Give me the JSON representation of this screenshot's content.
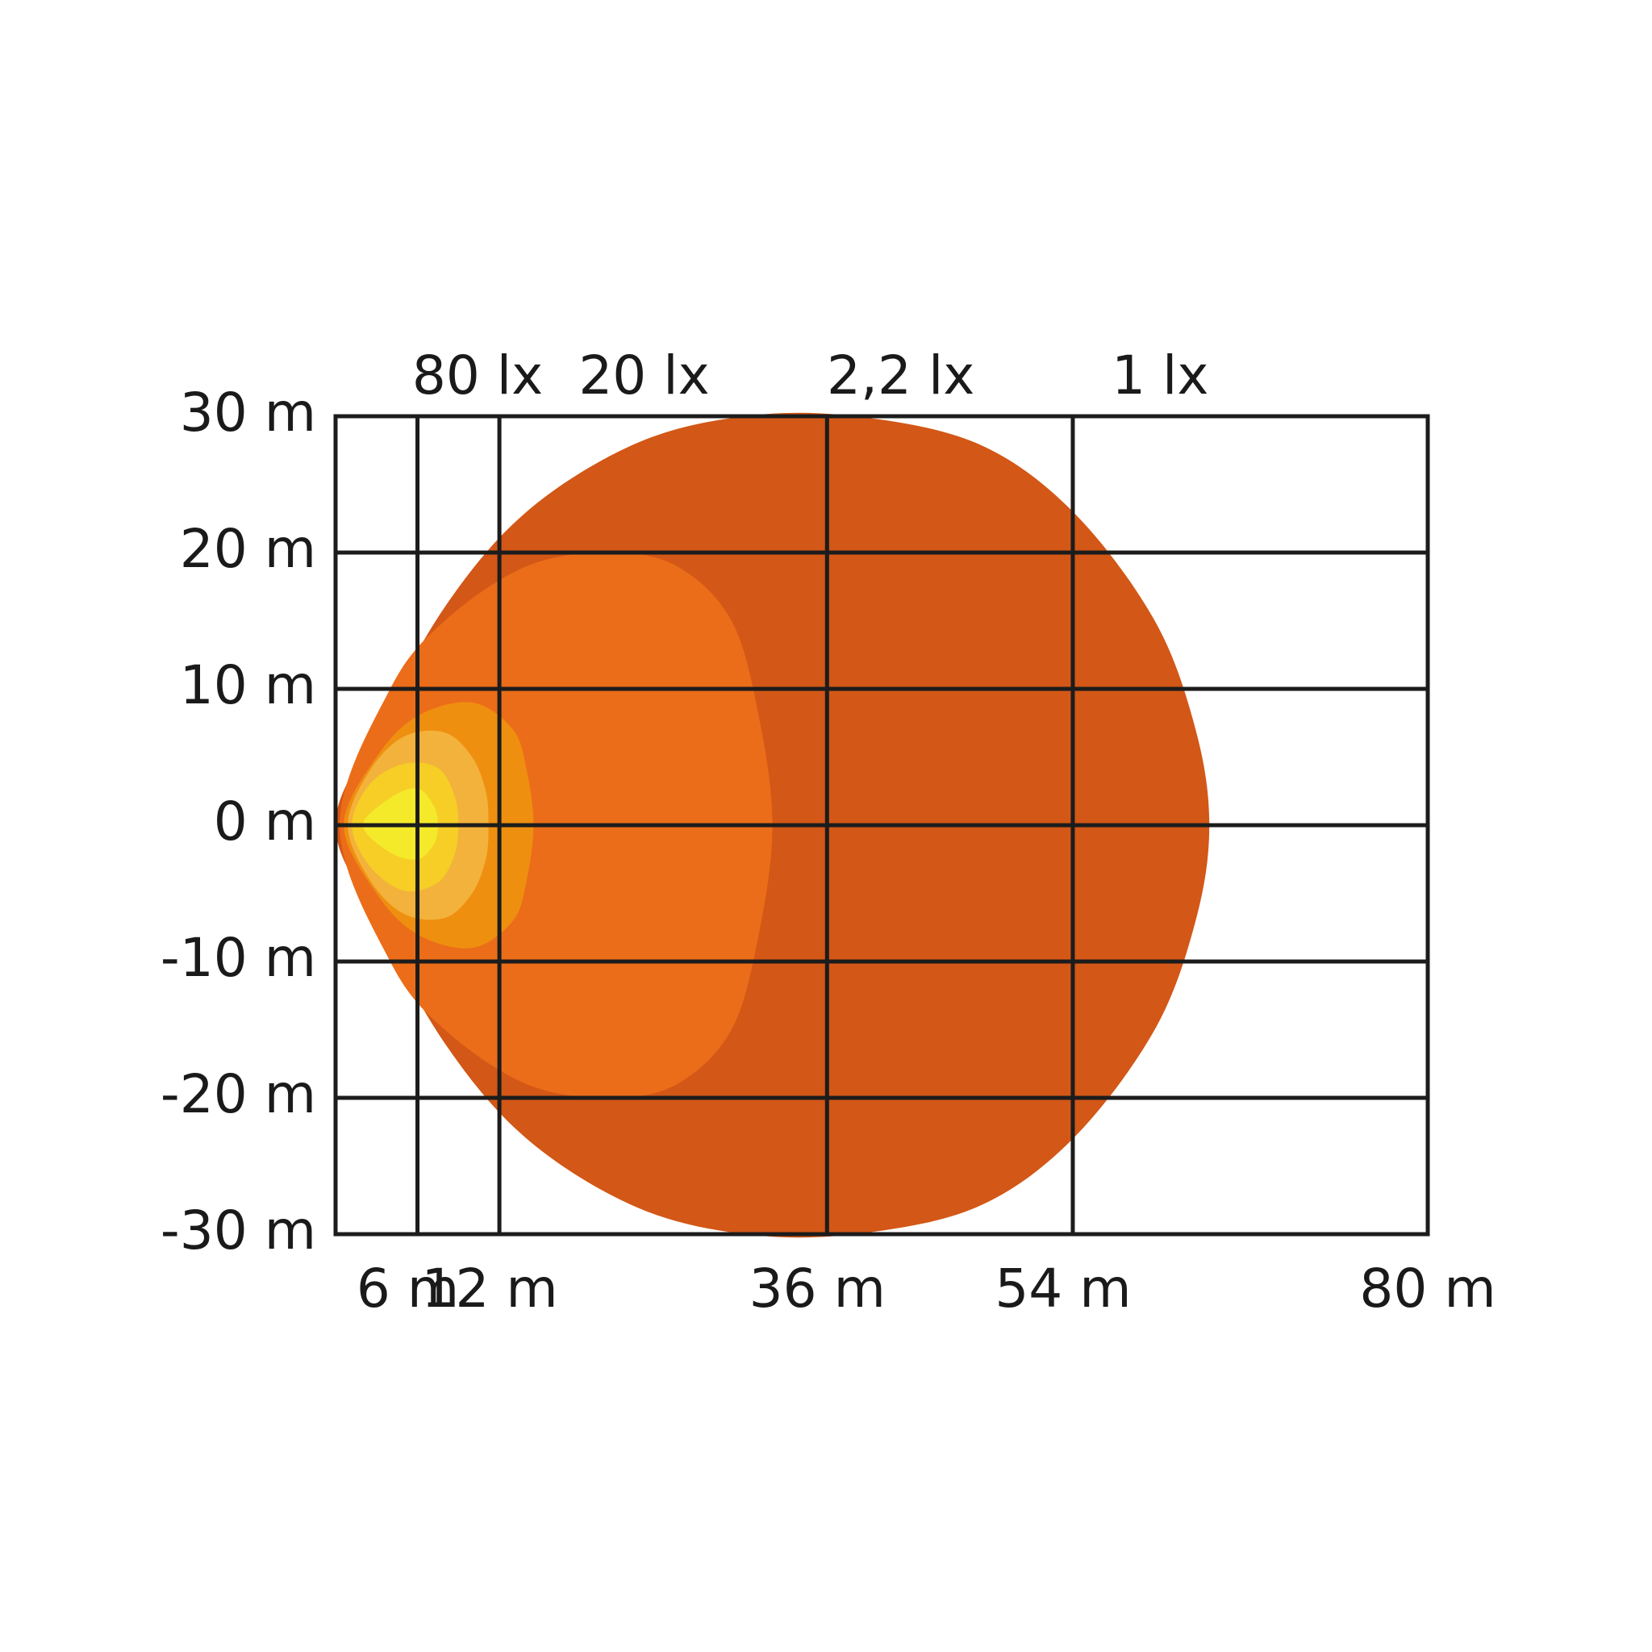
{
  "chart_data": {
    "type": "area",
    "title": "",
    "xlabel": "",
    "ylabel": "",
    "xlim": [
      0,
      80
    ],
    "ylim": [
      -30,
      30
    ],
    "grid": true,
    "x_ticks": [
      {
        "value": 6,
        "label": "6 m"
      },
      {
        "value": 12,
        "label": "12 m"
      },
      {
        "value": 36,
        "label": "36 m"
      },
      {
        "value": 54,
        "label": "54 m"
      },
      {
        "value": 80,
        "label": "80 m"
      }
    ],
    "y_ticks": [
      {
        "value": 30,
        "label": "30 m"
      },
      {
        "value": 20,
        "label": "20 m"
      },
      {
        "value": 10,
        "label": "10 m"
      },
      {
        "value": 0,
        "label": "0 m"
      },
      {
        "value": -10,
        "label": "-10 m"
      },
      {
        "value": -20,
        "label": "-20 m"
      },
      {
        "value": -30,
        "label": "-30 m"
      }
    ],
    "top_labels": [
      {
        "x": 10.4,
        "label": "80 lx"
      },
      {
        "x": 22.6,
        "label": "20 lx"
      },
      {
        "x": 41.4,
        "label": "2,2 lx"
      },
      {
        "x": 60.4,
        "label": "1 lx"
      }
    ],
    "isolux_regions": [
      {
        "label": "1 lx",
        "color": "#d35716",
        "boundary": [
          [
            0,
            0
          ],
          [
            3,
            7
          ],
          [
            8,
            16
          ],
          [
            14,
            23
          ],
          [
            22,
            28
          ],
          [
            30,
            30
          ],
          [
            38,
            30
          ],
          [
            47,
            28
          ],
          [
            54,
            23
          ],
          [
            60,
            15
          ],
          [
            63,
            7
          ],
          [
            64,
            0
          ],
          [
            63,
            -7
          ],
          [
            60,
            -15
          ],
          [
            54,
            -23
          ],
          [
            47,
            -28
          ],
          [
            38,
            -30
          ],
          [
            30,
            -30
          ],
          [
            22,
            -28
          ],
          [
            14,
            -23
          ],
          [
            8,
            -16
          ],
          [
            3,
            -7
          ],
          [
            0,
            0
          ]
        ]
      },
      {
        "label": "2,2 lx",
        "color": "#eb6d19",
        "boundary": [
          [
            0.3,
            0
          ],
          [
            4,
            10
          ],
          [
            8,
            15
          ],
          [
            14,
            19
          ],
          [
            20,
            20
          ],
          [
            25,
            19
          ],
          [
            29,
            15
          ],
          [
            31,
            8
          ],
          [
            32,
            0
          ],
          [
            31,
            -8
          ],
          [
            29,
            -15
          ],
          [
            25,
            -19
          ],
          [
            20,
            -20
          ],
          [
            14,
            -19
          ],
          [
            8,
            -15
          ],
          [
            4,
            -10
          ],
          [
            0.3,
            0
          ]
        ]
      },
      {
        "label": "20 lx",
        "color": "#ef8f10",
        "boundary": [
          [
            0.6,
            0
          ],
          [
            3,
            5
          ],
          [
            6,
            8
          ],
          [
            10,
            9
          ],
          [
            13,
            7
          ],
          [
            14,
            4
          ],
          [
            14.5,
            0
          ],
          [
            14,
            -4
          ],
          [
            13,
            -7
          ],
          [
            10,
            -9
          ],
          [
            6,
            -8
          ],
          [
            3,
            -5
          ],
          [
            0.6,
            0
          ]
        ]
      },
      {
        "label": "80 lx",
        "color": "#f3b23b",
        "boundary": [
          [
            0.9,
            0
          ],
          [
            2.5,
            4
          ],
          [
            5,
            6.5
          ],
          [
            8,
            6.8
          ],
          [
            10,
            5
          ],
          [
            11,
            2.5
          ],
          [
            11.2,
            0
          ],
          [
            11,
            -2.5
          ],
          [
            10,
            -5
          ],
          [
            8,
            -6.8
          ],
          [
            5,
            -6.5
          ],
          [
            2.5,
            -4
          ],
          [
            0.9,
            0
          ]
        ]
      },
      {
        "label": "",
        "color": "#f6ce25",
        "boundary": [
          [
            1.2,
            0
          ],
          [
            2.5,
            3
          ],
          [
            5,
            4.5
          ],
          [
            7.5,
            4.2
          ],
          [
            8.7,
            2.2
          ],
          [
            9,
            0
          ],
          [
            8.7,
            -2.2
          ],
          [
            7.5,
            -4.2
          ],
          [
            5,
            -4.8
          ],
          [
            2.5,
            -3
          ],
          [
            1.2,
            0
          ]
        ]
      },
      {
        "label": "",
        "color": "#f5ea2a",
        "boundary": [
          [
            2,
            0
          ],
          [
            4,
            2
          ],
          [
            6,
            2.7
          ],
          [
            7.2,
            1.4
          ],
          [
            7.5,
            0
          ],
          [
            7.2,
            -1.4
          ],
          [
            6,
            -2.5
          ],
          [
            4,
            -2
          ],
          [
            2,
            0
          ]
        ]
      }
    ]
  }
}
